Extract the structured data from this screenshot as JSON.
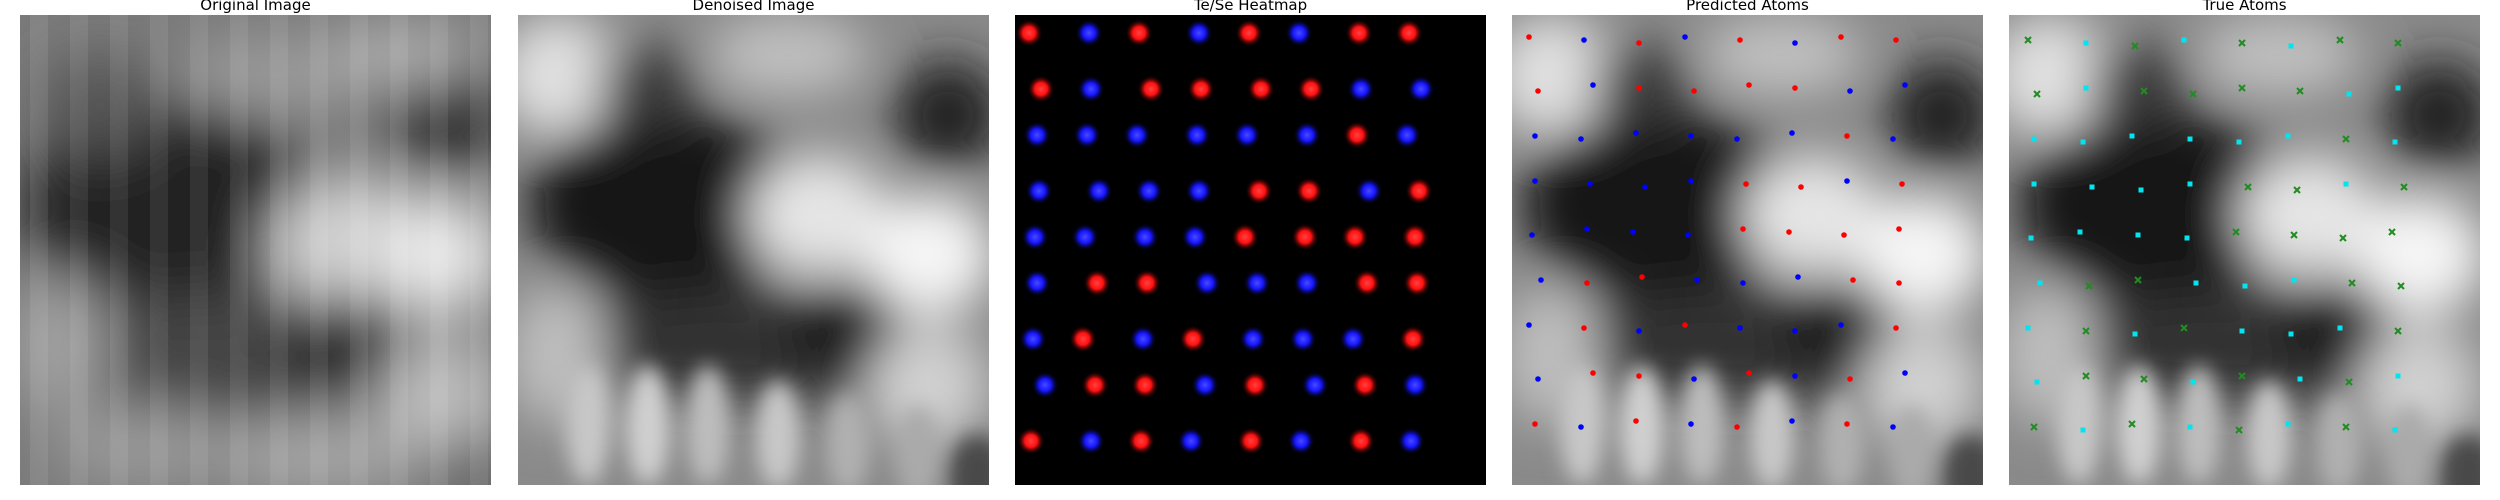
{
  "panels": [
    {
      "id": "original",
      "title": "Original Image"
    },
    {
      "id": "denoised",
      "title": "Denoised Image"
    },
    {
      "id": "heatmap",
      "title": "Te/Se Heatmap"
    },
    {
      "id": "predicted",
      "title": "Predicted Atoms"
    },
    {
      "id": "true",
      "title": "True Atoms"
    }
  ],
  "colors": {
    "te_heatmap": "#ff1a1a",
    "se_heatmap": "#1a1aff",
    "predicted_te": "#ff0000",
    "predicted_se": "#0000ff",
    "true_type_a": "#00e5ee",
    "true_type_b": "#228b22",
    "background": "#ffffff",
    "heatmap_background": "#000000"
  }
}
